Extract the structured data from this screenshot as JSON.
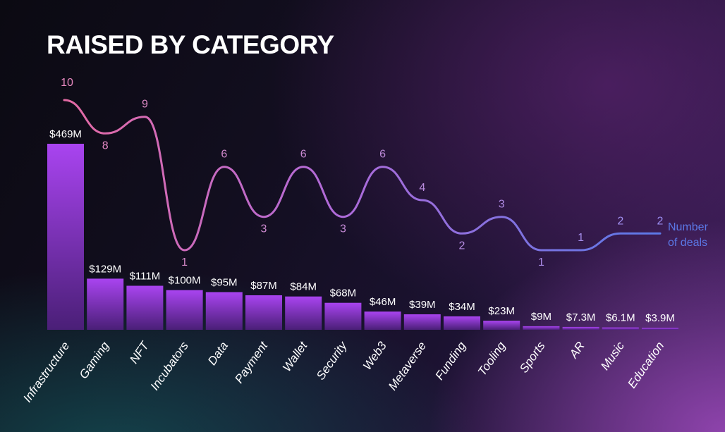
{
  "chart_data": {
    "type": "bar",
    "title": "RAISED BY CATEGORY",
    "categories": [
      "Infrastructure",
      "Gaming",
      "NFT",
      "Incubators",
      "Data",
      "Payment",
      "Wallet",
      "Security",
      "Web3",
      "Metaverse",
      "Funding",
      "Tooling",
      "Sports",
      "AR",
      "Music",
      "Education"
    ],
    "series": [
      {
        "type": "bar",
        "values": [
          469,
          129,
          111,
          100,
          95,
          87,
          84,
          68,
          46,
          39,
          34,
          23,
          9,
          7.3,
          6.1,
          3.9
        ],
        "labels": [
          "$469M",
          "$129M",
          "$111M",
          "$100M",
          "$95M",
          "$87M",
          "$84M",
          "$68M",
          "$46M",
          "$39M",
          "$34M",
          "$23M",
          "$9M",
          "$7.3M",
          "$6.1M",
          "$3.9M"
        ]
      },
      {
        "name": "Number of deals",
        "type": "line",
        "values": [
          10,
          8,
          9,
          1,
          6,
          3,
          6,
          3,
          6,
          4,
          2,
          3,
          1,
          1,
          2,
          2
        ]
      }
    ],
    "legend": {
      "line1": "Number",
      "line2": "of deals",
      "placement": "right-of-line-end"
    },
    "colors": {
      "bar_top": "#a944f0",
      "bar_bottom": "#4a1f77",
      "line_start": "#e46aa3",
      "line_mid": "#b06ad8",
      "line_end": "#5b78e6",
      "deal_text_start": "#e889c0",
      "deal_text_end": "#9a8cf0"
    }
  }
}
